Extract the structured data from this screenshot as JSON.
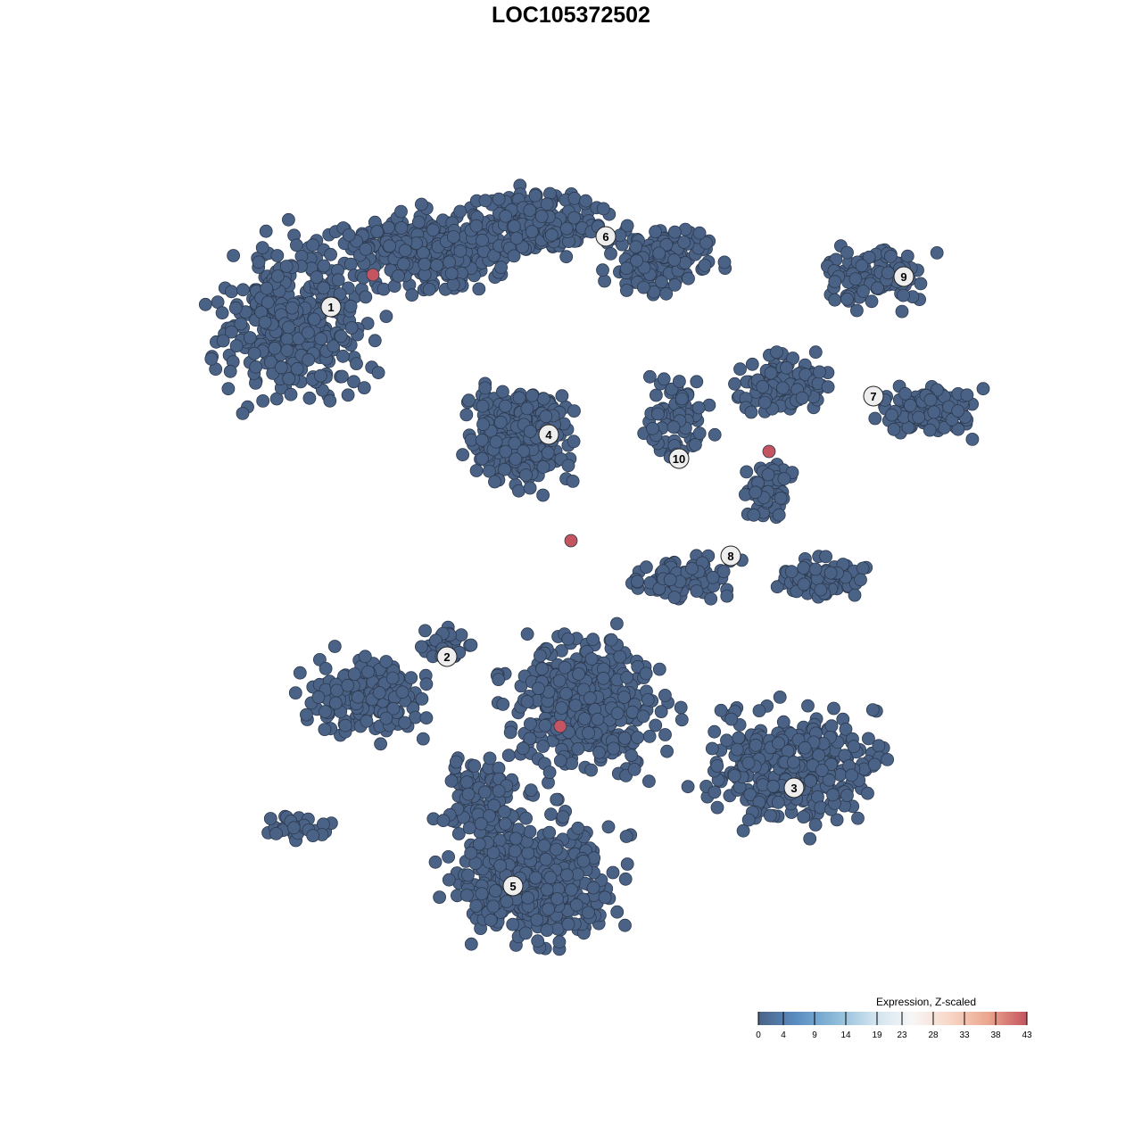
{
  "chart_data": {
    "type": "scatter",
    "title": "LOC105372502",
    "xlabel": "",
    "ylabel": "",
    "grid": false,
    "point_color_low": "#4b6287",
    "point_color_high": "#c4545f",
    "clusters": [
      "1",
      "2",
      "3",
      "4",
      "5",
      "6",
      "7",
      "8",
      "9",
      "10"
    ],
    "highlighted_points_count": 4,
    "colorbar": {
      "title": "Expression, Z-scaled",
      "ticks": [
        "0",
        "4",
        "9",
        "14",
        "19",
        "23",
        "28",
        "33",
        "38",
        "43"
      ],
      "range": [
        0,
        43
      ],
      "colors": [
        "#4b6287",
        "#5b8ec2",
        "#8bbad8",
        "#cfe2ee",
        "#f7f7f7",
        "#f8d6c6",
        "#eba58e",
        "#c4545f"
      ],
      "placement": "bottom-right"
    }
  }
}
